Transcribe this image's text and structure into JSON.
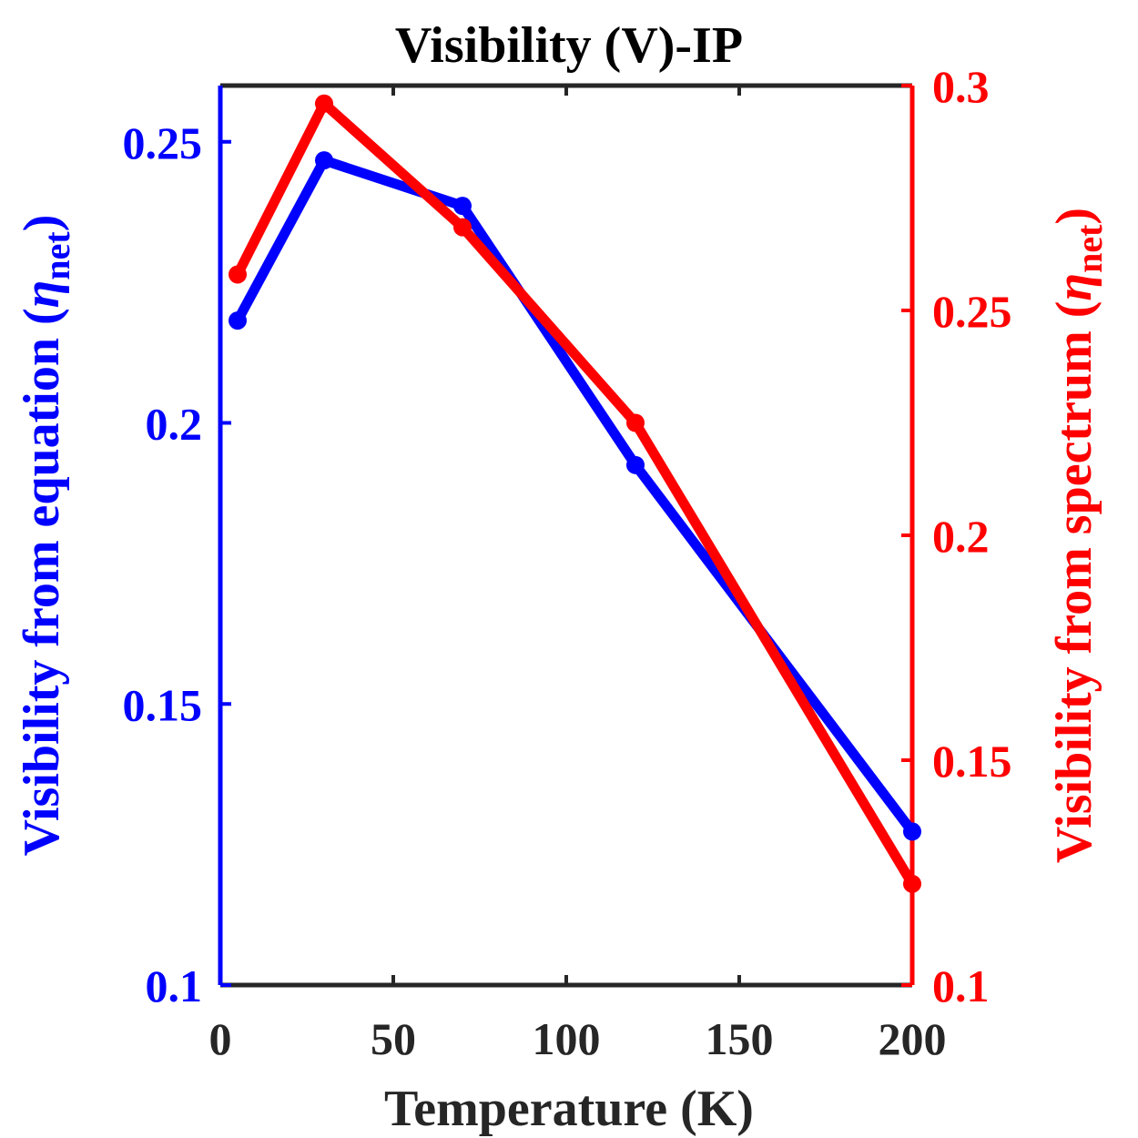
{
  "chart_data": {
    "type": "line",
    "title": "Visibility (V)-IP",
    "xlabel": "Temperature (K)",
    "ylabel_left": {
      "prefix": "Visibility from equation (",
      "symbol": "η",
      "sub": "net",
      "suffix": ")"
    },
    "ylabel_right": {
      "prefix": "Visibility from spectrum (",
      "symbol": "η",
      "sub": "net",
      "suffix": ")"
    },
    "xlim": [
      0,
      200
    ],
    "xticks": [
      0,
      50,
      100,
      150,
      200
    ],
    "xtick_labels": [
      "0",
      "50",
      "100",
      "150",
      "200"
    ],
    "ylim_left": [
      0.1,
      0.26
    ],
    "yticks_left": [
      0.1,
      0.15,
      0.2,
      0.25
    ],
    "ytick_labels_left": [
      "0.1",
      "0.15",
      "0.2",
      "0.25"
    ],
    "ylim_right": [
      0.1,
      0.3
    ],
    "yticks_right": [
      0.1,
      0.15,
      0.2,
      0.25,
      0.3
    ],
    "ytick_labels_right": [
      "0.1",
      "0.15",
      "0.2",
      "0.25",
      "0.3"
    ],
    "grid": false,
    "series": [
      {
        "axis": "left",
        "color": "#0000ff",
        "x": [
          5,
          30,
          70,
          120,
          200
        ],
        "values": [
          0.2182,
          0.2467,
          0.2386,
          0.1925,
          0.1273
        ]
      },
      {
        "axis": "right",
        "color": "#ff0000",
        "x": [
          5,
          30,
          70,
          120,
          200
        ],
        "values": [
          0.258,
          0.296,
          0.2685,
          0.225,
          0.1225
        ]
      }
    ]
  },
  "colors": {
    "left_axis": "#0000ff",
    "right_axis": "#ff0000",
    "text": "#262626",
    "frame": "#262626"
  }
}
